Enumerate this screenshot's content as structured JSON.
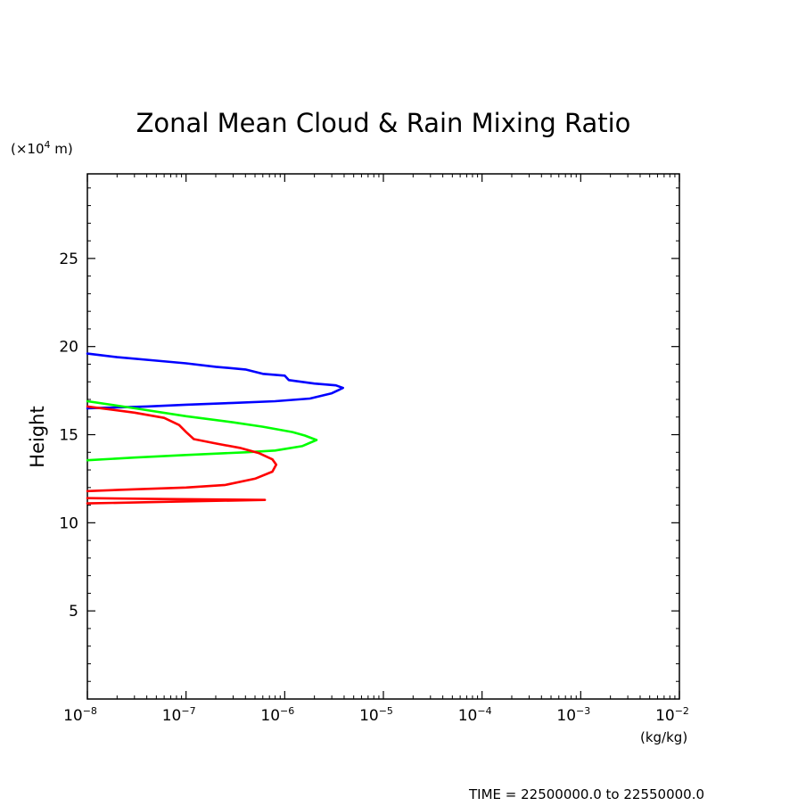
{
  "chart_data": {
    "type": "line",
    "title": "Zonal Mean Cloud & Rain Mixing Ratio",
    "ylabel": "Height",
    "y_unit_prefix": "(×10",
    "y_unit_exp": "4",
    "y_unit_suffix": " m)",
    "x_unit": "(kg/kg)",
    "footer": "TIME = 22500000.0 to 22550000.0",
    "xscale": "log",
    "xlim": [
      1e-08,
      0.01
    ],
    "ylim": [
      0,
      29.8
    ],
    "x_ticks": [
      {
        "base": "10",
        "exp": "−8",
        "value": 1e-08
      },
      {
        "base": "10",
        "exp": "−7",
        "value": 1e-07
      },
      {
        "base": "10",
        "exp": "−6",
        "value": 1e-06
      },
      {
        "base": "10",
        "exp": "−5",
        "value": 1e-05
      },
      {
        "base": "10",
        "exp": "−4",
        "value": 0.0001
      },
      {
        "base": "10",
        "exp": "−3",
        "value": 0.001
      },
      {
        "base": "10",
        "exp": "−2",
        "value": 0.01
      }
    ],
    "y_ticks": [
      "5",
      "10",
      "15",
      "20",
      "25"
    ],
    "grid": false,
    "series": [
      {
        "color": "#0000ff",
        "points": [
          [
            1e-08,
            19.6
          ],
          [
            2e-08,
            19.4
          ],
          [
            5e-08,
            19.2
          ],
          [
            1e-07,
            19.05
          ],
          [
            2e-07,
            18.85
          ],
          [
            4e-07,
            18.7
          ],
          [
            6e-07,
            18.45
          ],
          [
            1e-06,
            18.35
          ],
          [
            1.1e-06,
            18.1
          ],
          [
            2e-06,
            17.9
          ],
          [
            3.3e-06,
            17.8
          ],
          [
            3.9e-06,
            17.65
          ],
          [
            3e-06,
            17.35
          ],
          [
            1.8e-06,
            17.05
          ],
          [
            8e-07,
            16.9
          ],
          [
            3e-07,
            16.8
          ],
          [
            1e-07,
            16.7
          ],
          [
            4e-08,
            16.6
          ],
          [
            1e-08,
            16.5
          ]
        ]
      },
      {
        "color": "#00ff00",
        "points": [
          [
            1e-08,
            16.9
          ],
          [
            3e-08,
            16.5
          ],
          [
            1e-07,
            16.05
          ],
          [
            3e-07,
            15.7
          ],
          [
            6e-07,
            15.45
          ],
          [
            1.2e-06,
            15.15
          ],
          [
            1.6e-06,
            14.95
          ],
          [
            2.1e-06,
            14.7
          ],
          [
            1.5e-06,
            14.35
          ],
          [
            8e-07,
            14.1
          ],
          [
            4e-07,
            14.0
          ],
          [
            1e-07,
            13.85
          ],
          [
            3e-08,
            13.7
          ],
          [
            1e-08,
            13.55
          ]
        ]
      },
      {
        "color": "#ff0000",
        "points": [
          [
            1e-08,
            16.6
          ],
          [
            3e-08,
            16.25
          ],
          [
            6e-08,
            15.95
          ],
          [
            8.5e-08,
            15.55
          ],
          [
            1e-07,
            15.15
          ],
          [
            1.2e-07,
            14.75
          ],
          [
            2e-07,
            14.5
          ],
          [
            3.5e-07,
            14.25
          ],
          [
            5.5e-07,
            13.95
          ],
          [
            7.5e-07,
            13.6
          ],
          [
            8.2e-07,
            13.3
          ],
          [
            7.5e-07,
            12.9
          ],
          [
            5e-07,
            12.5
          ],
          [
            2.5e-07,
            12.15
          ],
          [
            1e-07,
            12.0
          ],
          [
            3e-08,
            11.9
          ],
          [
            1e-08,
            11.8
          ]
        ]
      },
      {
        "color": "#ff0000",
        "points": [
          [
            1e-08,
            11.4
          ],
          [
            6e-08,
            11.35
          ],
          [
            6.3e-07,
            11.3
          ],
          [
            8e-08,
            11.2
          ],
          [
            1e-08,
            11.1
          ]
        ]
      }
    ]
  }
}
